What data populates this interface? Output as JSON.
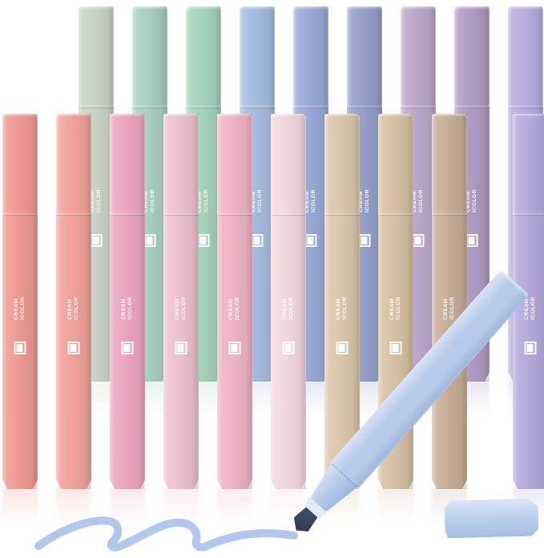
{
  "brand": {
    "line1": "CREAM",
    "line2": "ICOLOR"
  },
  "back_row_pens": [
    {
      "name": "sage-green",
      "color": "#c9d4c5"
    },
    {
      "name": "mint",
      "color": "#a8d0c1"
    },
    {
      "name": "mint-green",
      "color": "#a4d3bb"
    },
    {
      "name": "light-blue",
      "color": "#a5bcdf"
    },
    {
      "name": "periwinkle",
      "color": "#9aaad6"
    },
    {
      "name": "slate-blue",
      "color": "#959fc9"
    },
    {
      "name": "light-mauve",
      "color": "#bda8cb"
    },
    {
      "name": "mauve",
      "color": "#b19cc4"
    },
    {
      "name": "lavender",
      "color": "#b9ade0"
    }
  ],
  "front_row_pens": [
    {
      "name": "coral",
      "color": "#ef9a92"
    },
    {
      "name": "salmon",
      "color": "#f2a29c"
    },
    {
      "name": "pink",
      "color": "#eda6c0"
    },
    {
      "name": "light-pink",
      "color": "#edc2cf"
    },
    {
      "name": "rose-pink",
      "color": "#f0b4c5"
    },
    {
      "name": "blush",
      "color": "#f4d8e0"
    },
    {
      "name": "tan",
      "color": "#dcc7ab"
    },
    {
      "name": "beige",
      "color": "#d8c1a4"
    },
    {
      "name": "taupe",
      "color": "#c7ae99"
    },
    {
      "name": "lavender-front",
      "color": "#b5aadc"
    }
  ],
  "diagonal_pen": {
    "name": "sky-blue-uncapped",
    "body_light": "#d8e2f5",
    "body_color": "#b6caea",
    "body_shadow": "#9fb4da",
    "ferrule_color": "#e3eaf6",
    "tip_color": "#3b4a64",
    "tip_dark": "#2c3850"
  },
  "detached_cap": {
    "color_light": "#dbe6f7",
    "color": "#bcd0ee",
    "color_shadow": "#a6bce2"
  },
  "squiggle": {
    "color": "#b2c7ec"
  }
}
